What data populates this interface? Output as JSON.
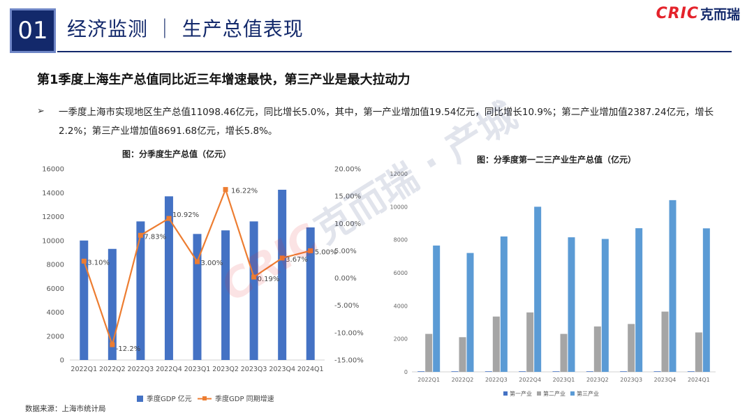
{
  "header": {
    "section_number": "01",
    "title": "经济监测 ｜ 生产总值表现",
    "logo_en": "CRIC",
    "logo_cn": "克而瑞",
    "accent_color": "#13296b",
    "logo_color": "#e4232b"
  },
  "headline": "第1季度上海生产总值同比近三年增速最快，第三产业是最大拉动力",
  "bullet": {
    "mark": "➢",
    "text": "一季度上海市实现地区生产总值11098.46亿元，同比增长5.0%，其中，第一产业增加值19.54亿元，同比增长10.9%；第二产业增加值2387.24亿元，增长2.2%；第三产业增加值8691.68亿元，增长5.8%。"
  },
  "watermark": {
    "en": "CRIC",
    "cn": "克而瑞 · 产城"
  },
  "source": "数据来源：上海市统计局",
  "chart_data": [
    {
      "type": "bar+line",
      "title": "图：分季度生产总值（亿元）",
      "categories": [
        "2022Q1",
        "2022Q2",
        "2022Q3",
        "2022Q4",
        "2023Q1",
        "2023Q2",
        "2023Q3",
        "2023Q4",
        "2024Q1"
      ],
      "series": [
        {
          "name": "季度GDP 亿元",
          "type": "bar",
          "axis": "left",
          "color": "#4472c4",
          "values": [
            10000,
            9300,
            11600,
            13700,
            10550,
            10850,
            11600,
            14250,
            11098
          ]
        },
        {
          "name": "季度GDP 同期增速",
          "type": "line",
          "axis": "right",
          "color": "#ed7d31",
          "values": [
            3.1,
            -12.2,
            7.83,
            10.92,
            3.0,
            16.22,
            0.19,
            3.67,
            5.0
          ],
          "labels": [
            "3.10%",
            "-12.2%",
            "7.83%",
            "10.92%",
            "3.00%",
            "16.22%",
            "0.19%",
            "3.67%",
            "5.00%"
          ]
        }
      ],
      "ylim_left": [
        0,
        16000
      ],
      "yticks_left": [
        "0",
        "2000",
        "4000",
        "6000",
        "8000",
        "10000",
        "12000",
        "14000",
        "16000"
      ],
      "ylim_right": [
        -15,
        20
      ],
      "yticks_right": [
        "-15.00%",
        "-10.00%",
        "-5.00%",
        "0.00%",
        "5.00%",
        "10.00%",
        "15.00%",
        "20.00%"
      ],
      "legend": "bottom",
      "grid": false
    },
    {
      "type": "bar",
      "title": "图：分季度第一二三产业生产总值（亿元）",
      "categories": [
        "2022Q1",
        "2022Q2",
        "2022Q3",
        "2022Q4",
        "2023Q1",
        "2023Q2",
        "2023Q3",
        "2023Q4",
        "2024Q1"
      ],
      "series": [
        {
          "name": "第一产业",
          "color": "#4472c4",
          "values": [
            15,
            15,
            20,
            25,
            15,
            20,
            20,
            25,
            19.54
          ]
        },
        {
          "name": "第二产业",
          "color": "#a5a5a5",
          "values": [
            2300,
            2100,
            3350,
            3600,
            2300,
            2750,
            2900,
            3650,
            2387.24
          ]
        },
        {
          "name": "第三产业",
          "color": "#5b9bd5",
          "values": [
            7650,
            7200,
            8200,
            10000,
            8150,
            8050,
            8700,
            10400,
            8691.68
          ]
        }
      ],
      "ylim": [
        0,
        12000
      ],
      "yticks": [
        "0",
        "2000",
        "4000",
        "6000",
        "8000",
        "10000",
        "12000"
      ],
      "legend": "bottom",
      "grid": false
    }
  ]
}
